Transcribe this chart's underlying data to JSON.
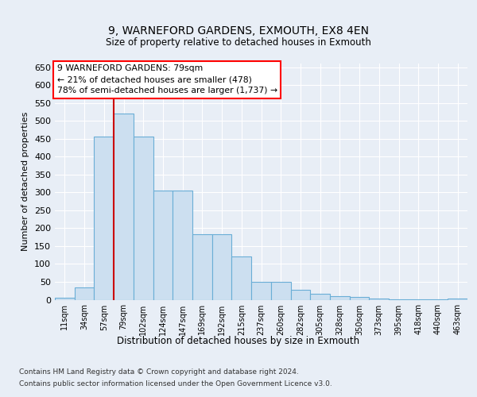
{
  "title1": "9, WARNEFORD GARDENS, EXMOUTH, EX8 4EN",
  "title2": "Size of property relative to detached houses in Exmouth",
  "xlabel": "Distribution of detached houses by size in Exmouth",
  "ylabel": "Number of detached properties",
  "categories": [
    "11sqm",
    "34sqm",
    "57sqm",
    "79sqm",
    "102sqm",
    "124sqm",
    "147sqm",
    "169sqm",
    "192sqm",
    "215sqm",
    "237sqm",
    "260sqm",
    "282sqm",
    "305sqm",
    "328sqm",
    "350sqm",
    "373sqm",
    "395sqm",
    "418sqm",
    "440sqm",
    "463sqm"
  ],
  "values": [
    5,
    35,
    457,
    520,
    457,
    305,
    305,
    182,
    182,
    120,
    50,
    50,
    27,
    16,
    10,
    7,
    4,
    2,
    1,
    1,
    4
  ],
  "bar_color": "#ccdff0",
  "bar_edge_color": "#6aaed6",
  "vline_color": "#cc0000",
  "vline_index": 3,
  "annotation_text": "9 WARNEFORD GARDENS: 79sqm\n← 21% of detached houses are smaller (478)\n78% of semi-detached houses are larger (1,737) →",
  "ylim": [
    0,
    660
  ],
  "yticks": [
    0,
    50,
    100,
    150,
    200,
    250,
    300,
    350,
    400,
    450,
    500,
    550,
    600,
    650
  ],
  "footer1": "Contains HM Land Registry data © Crown copyright and database right 2024.",
  "footer2": "Contains public sector information licensed under the Open Government Licence v3.0.",
  "bg_color": "#e8eef6"
}
